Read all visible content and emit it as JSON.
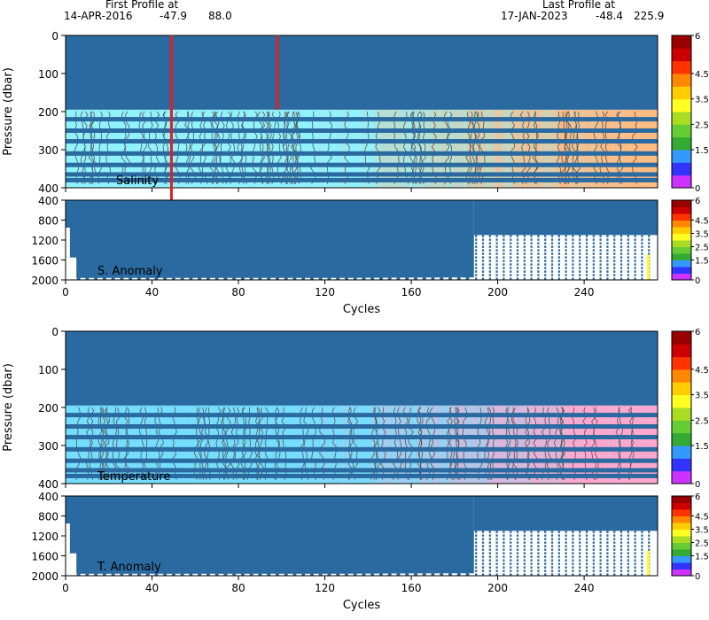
{
  "header": {
    "first_title": "First Profile at",
    "first_date": "14-APR-2016",
    "first_lat": "-47.9",
    "first_lon": "88.0",
    "last_title": "Last Profile at",
    "last_date": "17-JAN-2023",
    "last_lat": "-48.4",
    "last_lon": "225.9"
  },
  "colors": {
    "profile_blue": "#2a6aa0",
    "marker_red": "#e02020",
    "salinity_low": "#80f0ff",
    "salinity_high": "#ffb070",
    "temperature_low": "#60d8ff",
    "temperature_high": "#ff9ac8",
    "contour": "#555555"
  },
  "chart_data": [
    {
      "id": "salinity",
      "type": "heatmap",
      "label": "Salinity",
      "ylabel": "Pressure (dbar)",
      "xlim": [
        0,
        274
      ],
      "ylim": [
        0,
        400
      ],
      "y_ticks": [
        "0",
        "100",
        "200",
        "300",
        "400"
      ],
      "y_tick_values": [
        0,
        100,
        200,
        300,
        400
      ],
      "x_ticks": [
        "0",
        "40",
        "80",
        "120",
        "160",
        "200",
        "240"
      ],
      "x_tick_values": [
        0,
        40,
        80,
        120,
        160,
        200,
        240
      ],
      "solid_to_pressure": 195,
      "levels": [
        220,
        250,
        278,
        310,
        340,
        365,
        380
      ],
      "red_marker_cycles": [
        49,
        98
      ],
      "red_marker_bottoms": [
        400,
        195
      ],
      "colorbar_ticks": [
        "6",
        "4.5",
        "3.5",
        "2.5",
        "1.5",
        "0"
      ],
      "colorbar_tick_values": [
        6,
        4.5,
        3.5,
        2.5,
        1.5,
        0
      ]
    },
    {
      "id": "s_anomaly",
      "type": "scatter",
      "label": "S. Anomaly",
      "ylim": [
        400,
        2000
      ],
      "y_ticks": [
        "400",
        "800",
        "1200",
        "1600",
        "2000"
      ],
      "y_tick_values": [
        400,
        800,
        1200,
        1600,
        2000
      ],
      "x_ticks": [
        "0",
        "40",
        "80",
        "120",
        "160",
        "200",
        "240"
      ],
      "x_tick_values": [
        0,
        40,
        80,
        120,
        160,
        200,
        240
      ],
      "xlabel": "Cycles",
      "columns_to_cycle": 189,
      "late_profile_top": 1100,
      "colorbar_ticks": [
        "6",
        "4.5",
        "3.5",
        "2.5",
        "1.5",
        "0"
      ],
      "colorbar_tick_values": [
        6,
        4.5,
        3.5,
        2.5,
        1.5,
        0
      ]
    },
    {
      "id": "temperature",
      "type": "heatmap",
      "label": "Temperature",
      "ylabel": "Pressure (dbar)",
      "xlim": [
        0,
        274
      ],
      "ylim": [
        0,
        400
      ],
      "y_ticks": [
        "0",
        "100",
        "200",
        "300",
        "400"
      ],
      "y_tick_values": [
        0,
        100,
        200,
        300,
        400
      ],
      "x_ticks": [
        "0",
        "40",
        "80",
        "120",
        "160",
        "200",
        "240"
      ],
      "x_tick_values": [
        0,
        40,
        80,
        120,
        160,
        200,
        240
      ],
      "solid_to_pressure": 195,
      "levels": [
        220,
        250,
        278,
        310,
        340,
        365,
        380
      ],
      "colorbar_ticks": [
        "6",
        "4.5",
        "3.5",
        "2.5",
        "1.5",
        "0"
      ],
      "colorbar_tick_values": [
        6,
        4.5,
        3.5,
        2.5,
        1.5,
        0
      ]
    },
    {
      "id": "t_anomaly",
      "type": "scatter",
      "label": "T. Anomaly",
      "ylim": [
        400,
        2000
      ],
      "y_ticks": [
        "400",
        "800",
        "1200",
        "1600",
        "2000"
      ],
      "y_tick_values": [
        400,
        800,
        1200,
        1600,
        2000
      ],
      "x_ticks": [
        "0",
        "40",
        "80",
        "120",
        "160",
        "200",
        "240"
      ],
      "x_tick_values": [
        0,
        40,
        80,
        120,
        160,
        200,
        240
      ],
      "xlabel": "Cycles",
      "columns_to_cycle": 189,
      "late_profile_top": 1100,
      "colorbar_ticks": [
        "6",
        "4.5",
        "3.5",
        "2.5",
        "1.5",
        "0"
      ],
      "colorbar_tick_values": [
        6,
        4.5,
        3.5,
        2.5,
        1.5,
        0
      ]
    }
  ],
  "colorbar_colors": [
    "#cc33ff",
    "#3333ff",
    "#3399ff",
    "#33aa33",
    "#66cc33",
    "#aadd22",
    "#ffff22",
    "#ffcc00",
    "#ff8800",
    "#ff3300",
    "#cc0000",
    "#990000"
  ]
}
